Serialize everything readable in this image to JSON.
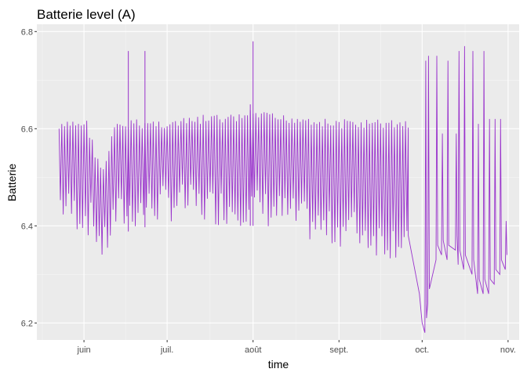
{
  "colors": {
    "panel_background": "#ebebeb",
    "grid_major": "#ffffff",
    "grid_minor": "#f5f5f5",
    "series": "#9932cc"
  },
  "chart_data": {
    "type": "line",
    "title": "Batterie level (A)",
    "xlabel": "time",
    "ylabel": "Batterie",
    "x_axis_kind": "date",
    "xlim": [
      "2021-05-15",
      "2021-11-05"
    ],
    "ylim": [
      6.165,
      6.815
    ],
    "x_ticks": [
      {
        "date": "2021-06-01",
        "label": "juin"
      },
      {
        "date": "2021-07-01",
        "label": "juil."
      },
      {
        "date": "2021-08-01",
        "label": "août"
      },
      {
        "date": "2021-09-01",
        "label": "sept."
      },
      {
        "date": "2021-10-01",
        "label": "oct."
      },
      {
        "date": "2021-11-01",
        "label": "nov."
      }
    ],
    "y_ticks": [
      6.2,
      6.4,
      6.6,
      6.8
    ],
    "grid": true,
    "legend": "none",
    "series": [
      {
        "color": "#9932cc",
        "note_daily_cycle": true,
        "envelope": [
          {
            "date": "2021-05-23",
            "low": 6.41,
            "high": 6.61
          },
          {
            "date": "2021-05-28",
            "low": 6.39,
            "high": 6.62
          },
          {
            "date": "2021-06-02",
            "low": 6.38,
            "high": 6.62
          },
          {
            "date": "2021-06-05",
            "low": 6.36,
            "high": 6.56
          },
          {
            "date": "2021-06-08",
            "low": 6.31,
            "high": 6.52
          },
          {
            "date": "2021-06-12",
            "low": 6.38,
            "high": 6.61
          },
          {
            "date": "2021-06-18",
            "low": 6.39,
            "high": 6.62
          },
          {
            "date": "2021-06-25",
            "low": 6.4,
            "high": 6.62
          },
          {
            "date": "2021-07-05",
            "low": 6.41,
            "high": 6.62
          },
          {
            "date": "2021-07-15",
            "low": 6.4,
            "high": 6.63
          },
          {
            "date": "2021-07-25",
            "low": 6.4,
            "high": 6.63
          },
          {
            "date": "2021-08-01",
            "low": 6.4,
            "high": 6.64
          },
          {
            "date": "2021-08-10",
            "low": 6.39,
            "high": 6.63
          },
          {
            "date": "2021-08-20",
            "low": 6.37,
            "high": 6.63
          },
          {
            "date": "2021-08-28",
            "low": 6.35,
            "high": 6.62
          },
          {
            "date": "2021-09-05",
            "low": 6.36,
            "high": 6.62
          },
          {
            "date": "2021-09-12",
            "low": 6.34,
            "high": 6.62
          },
          {
            "date": "2021-09-20",
            "low": 6.33,
            "high": 6.62
          },
          {
            "date": "2021-09-26",
            "low": 6.34,
            "high": 6.62
          }
        ],
        "drop": [
          {
            "date": "2021-09-26",
            "value": 6.38
          },
          {
            "date": "2021-09-30",
            "value": 6.26
          },
          {
            "date": "2021-10-01",
            "value": 6.2
          },
          {
            "date": "2021-10-02",
            "value": 6.18
          }
        ],
        "late_spikes": [
          {
            "date": "2021-10-02",
            "low": 6.18,
            "high": 6.74
          },
          {
            "date": "2021-10-03",
            "low": 6.24,
            "high": 6.75
          },
          {
            "date": "2021-10-06",
            "low": 6.33,
            "high": 6.75
          },
          {
            "date": "2021-10-08",
            "low": 6.34,
            "high": 6.59
          },
          {
            "date": "2021-10-10",
            "low": 6.33,
            "high": 6.74
          },
          {
            "date": "2021-10-13",
            "low": 6.35,
            "high": 6.59
          },
          {
            "date": "2021-10-14",
            "low": 6.32,
            "high": 6.76
          },
          {
            "date": "2021-10-16",
            "low": 6.31,
            "high": 6.77
          },
          {
            "date": "2021-10-19",
            "low": 6.3,
            "high": 6.76
          },
          {
            "date": "2021-10-21",
            "low": 6.26,
            "high": 6.61
          },
          {
            "date": "2021-10-23",
            "low": 6.26,
            "high": 6.76
          },
          {
            "date": "2021-10-25",
            "low": 6.26,
            "high": 6.62
          },
          {
            "date": "2021-10-27",
            "low": 6.28,
            "high": 6.62
          },
          {
            "date": "2021-10-29",
            "low": 6.3,
            "high": 6.62
          },
          {
            "date": "2021-10-31",
            "low": 6.31,
            "high": 6.41
          }
        ],
        "outliers": [
          {
            "date": "2021-06-17",
            "value": 6.76
          },
          {
            "date": "2021-06-23",
            "value": 6.76
          },
          {
            "date": "2021-08-01",
            "value": 6.78
          },
          {
            "date": "2021-07-31",
            "value": 6.65
          }
        ]
      }
    ]
  }
}
